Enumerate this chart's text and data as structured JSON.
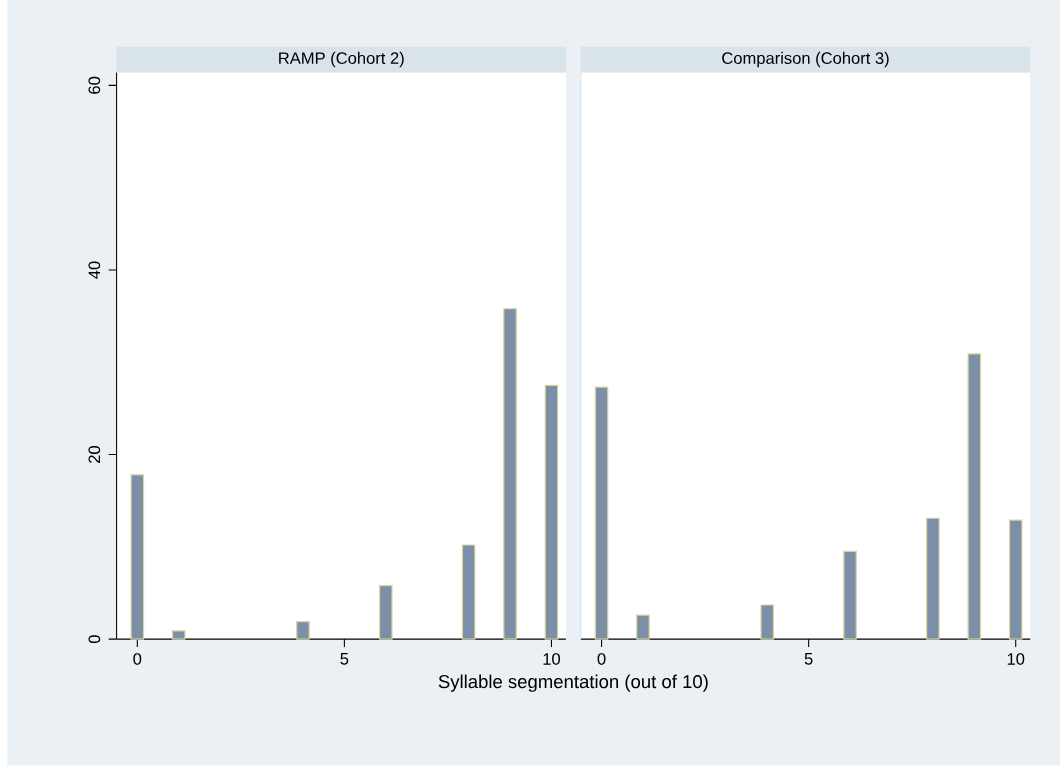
{
  "chart_data": [
    {
      "type": "bar",
      "title": "RAMP (Cohort 2)",
      "xlabel": "Syllable segmentation (out of 10)",
      "x": [
        0,
        1,
        4,
        6,
        8,
        9,
        10
      ],
      "values": [
        17.8,
        0.9,
        1.9,
        5.8,
        10.2,
        35.8,
        27.5
      ],
      "color": "#7b8fa8",
      "xlim": [
        -0.5,
        10.35
      ],
      "xticks": [
        0,
        5,
        10
      ],
      "ylim": [
        0,
        61.4
      ],
      "yticks": [
        0,
        20,
        40,
        60
      ]
    },
    {
      "type": "bar",
      "title": "Comparison (Cohort 3)",
      "x": [
        0,
        1,
        4,
        6,
        8,
        9,
        10
      ],
      "values": [
        27.3,
        2.6,
        3.7,
        9.5,
        13.1,
        30.9,
        12.9
      ],
      "color": "#7b8fa8",
      "xlim": [
        -0.5,
        10.35
      ],
      "xticks": [
        0,
        5,
        10
      ],
      "ylim": [
        0,
        61.4
      ],
      "tick_labels": "x"
    }
  ]
}
